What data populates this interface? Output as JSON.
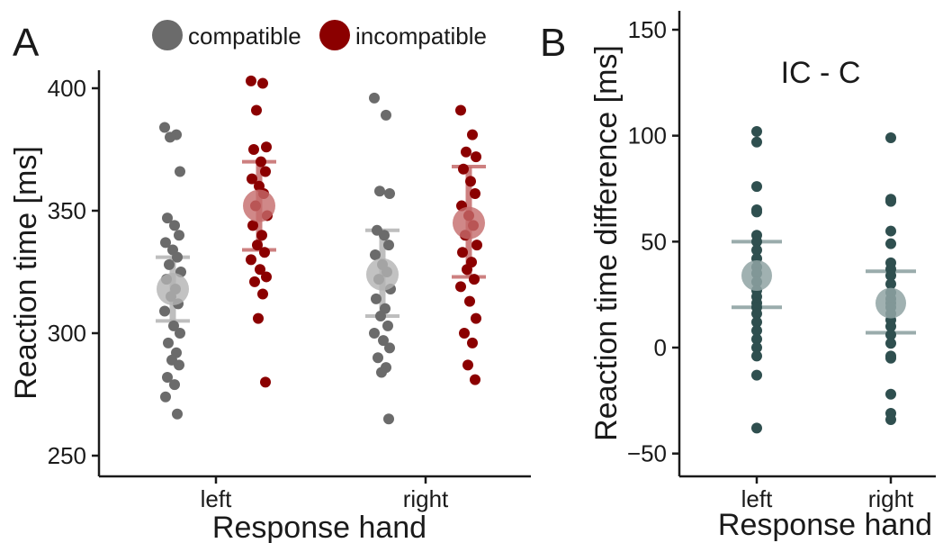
{
  "legend": [
    {
      "label": "compatible",
      "color": "#6b6b6b"
    },
    {
      "label": "incompatible",
      "color": "#8b0000"
    }
  ],
  "colors": {
    "compatible": "#6b6b6b",
    "compatible_mean": "#b3b3b3",
    "incompatible": "#8b0000",
    "incompatible_mean": "#c46a6a",
    "difference": "#2f4f4f",
    "difference_mean": "#8fa3a3",
    "axis": "#1a1a1a"
  },
  "chart_data": [
    {
      "type": "scatter",
      "panel": "A",
      "xlabel": "Response hand",
      "ylabel": "Reaction time [ms]",
      "categories": [
        "left",
        "right"
      ],
      "ylim": [
        242,
        408
      ],
      "yticks": [
        250,
        300,
        350,
        400
      ],
      "legend_position": "top",
      "series": [
        {
          "name": "compatible",
          "points": {
            "left": [
              384,
              381,
              380,
              366,
              347,
              344,
              340,
              337,
              334,
              331,
              328,
              325,
              322,
              318,
              315,
              312,
              309,
              303,
              300,
              296,
              292,
              289,
              287,
              282,
              279,
              274,
              267
            ],
            "right": [
              396,
              389,
              358,
              357,
              342,
              340,
              336,
              332,
              328,
              325,
              322,
              318,
              314,
              310,
              307,
              303,
              300,
              297,
              294,
              290,
              286,
              284,
              265
            ]
          },
          "mean": {
            "left": 318,
            "right": 324
          },
          "error": {
            "left": [
              305,
              331
            ],
            "right": [
              307,
              342
            ]
          }
        },
        {
          "name": "incompatible",
          "points": {
            "left": [
              403,
              402,
              391,
              376,
              375,
              370,
              366,
              363,
              360,
              357,
              352,
              348,
              344,
              340,
              336,
              333,
              330,
              326,
              323,
              321,
              316,
              306,
              280
            ],
            "right": [
              391,
              381,
              374,
              372,
              367,
              362,
              357,
              352,
              348,
              344,
              340,
              336,
              333,
              329,
              326,
              322,
              319,
              313,
              306,
              300,
              296,
              287,
              281
            ]
          },
          "mean": {
            "left": 352,
            "right": 345
          },
          "error": {
            "left": [
              334,
              370
            ],
            "right": [
              323,
              368
            ]
          }
        }
      ]
    },
    {
      "type": "scatter",
      "panel": "B",
      "title": "IC - C",
      "xlabel": "Response hand",
      "ylabel": "Reaction time difference [ms]",
      "categories": [
        "left",
        "right"
      ],
      "ylim": [
        -60,
        160
      ],
      "yticks": [
        -50,
        0,
        50,
        100,
        150
      ],
      "series": [
        {
          "points": {
            "left": [
              102,
              97,
              76,
              65,
              64,
              53,
              50,
              46,
              42,
              38,
              35,
              31,
              27,
              24,
              21,
              19,
              16,
              12,
              8,
              4,
              0,
              -4,
              -13,
              -38
            ],
            "right": [
              99,
              70,
              69,
              55,
              49,
              40,
              37,
              34,
              30,
              26,
              23,
              21,
              19,
              16,
              13,
              10,
              6,
              2,
              -4,
              -5,
              -22,
              -31,
              -34
            ]
          },
          "mean": {
            "left": 34,
            "right": 21
          },
          "error": {
            "left": [
              19,
              50
            ],
            "right": [
              7,
              36
            ]
          }
        }
      ]
    }
  ]
}
